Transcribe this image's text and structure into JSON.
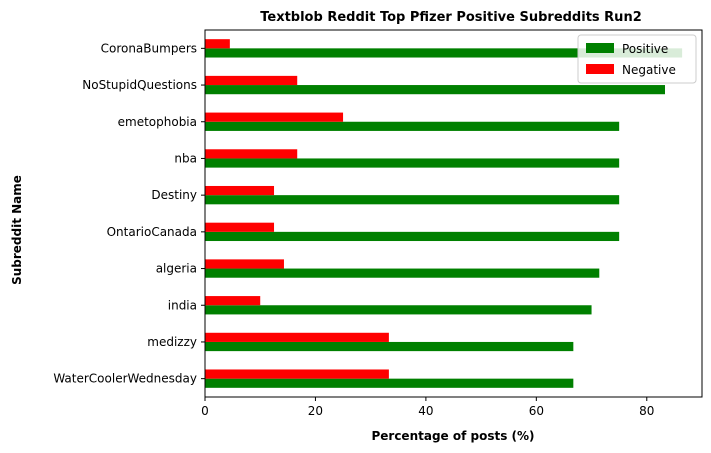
{
  "chart_data": {
    "type": "bar",
    "orientation": "horizontal",
    "title": "Textblob Reddit Top Pfizer Positive Subreddits Run2",
    "xlabel": "Percentage of posts (%)",
    "ylabel": "Subreddit Name",
    "xlim": [
      0,
      90
    ],
    "xticks": [
      0,
      20,
      40,
      60,
      80
    ],
    "categories": [
      "CoronaBumpers",
      "NoStupidQuestions",
      "emetophobia",
      "nba",
      "Destiny",
      "OntarioCanada",
      "algeria",
      "india",
      "medizzy",
      "WaterCoolerWednesday"
    ],
    "series": [
      {
        "name": "Positive",
        "color": "#008000",
        "values": [
          86.4,
          83.3,
          75.0,
          75.0,
          75.0,
          75.0,
          71.4,
          70.0,
          66.7,
          66.7
        ]
      },
      {
        "name": "Negative",
        "color": "#ff0000",
        "values": [
          4.5,
          16.7,
          25.0,
          16.7,
          12.5,
          12.5,
          14.3,
          10.0,
          33.3,
          33.3
        ]
      }
    ],
    "legend_position": "top-right",
    "grid": false
  }
}
